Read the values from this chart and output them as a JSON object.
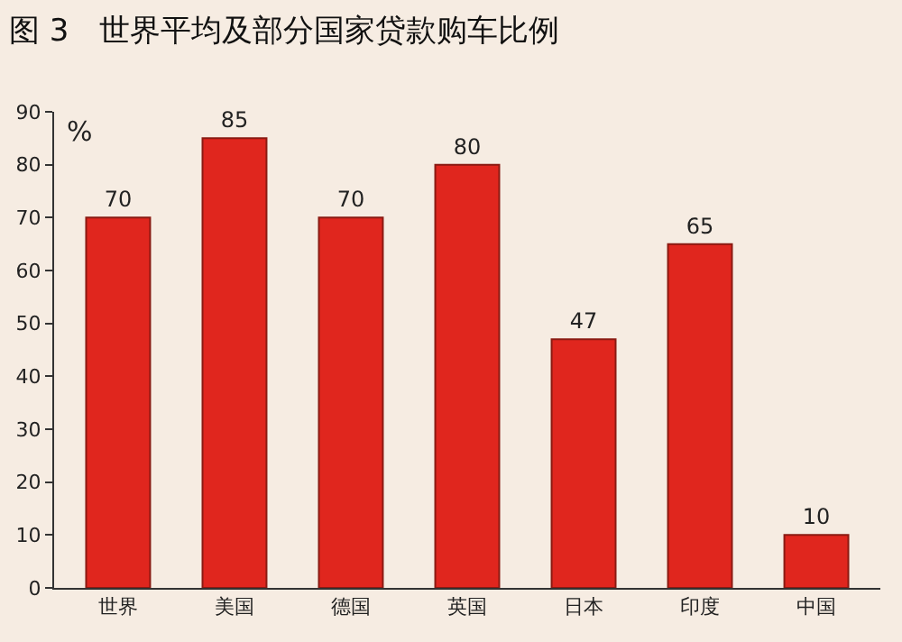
{
  "chart_data": {
    "type": "bar",
    "title": "图 3　世界平均及部分国家贷款购车比例",
    "ylabel": "%",
    "categories": [
      "世界",
      "美国",
      "德国",
      "英国",
      "日本",
      "印度",
      "中国"
    ],
    "values": [
      70,
      85,
      70,
      80,
      47,
      65,
      10
    ],
    "color": "#e0261e",
    "ylim": [
      0,
      90
    ],
    "yticks": [
      0,
      10,
      20,
      30,
      40,
      50,
      60,
      70,
      80,
      90
    ],
    "grid": false,
    "data_labels": true
  }
}
